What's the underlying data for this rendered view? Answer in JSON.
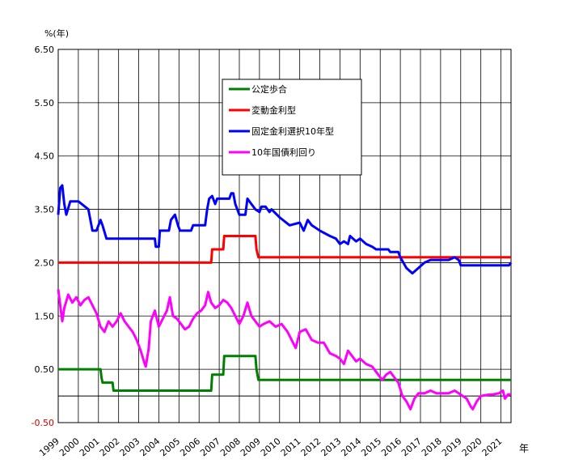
{
  "chart_data": {
    "type": "line",
    "ylabel": "%(年)",
    "xlabel": "年",
    "ylim": [
      -0.5,
      6.5
    ],
    "xlim": [
      1999.0,
      2021.5
    ],
    "grid": true,
    "legend_position": "top-center",
    "y_ticks": [
      "6.50",
      "5.50",
      "4.50",
      "3.50",
      "2.50",
      "1.50",
      "0.50",
      "-0.50"
    ],
    "y_tick_values": [
      6.5,
      5.5,
      4.5,
      3.5,
      2.5,
      1.5,
      0.5,
      -0.5
    ],
    "x_ticks": [
      "1999",
      "2000",
      "2001",
      "2002",
      "2003",
      "2004",
      "2005",
      "2006",
      "2007",
      "2008",
      "2009",
      "2010",
      "2011",
      "2012",
      "2013",
      "2014",
      "2015",
      "2016",
      "2017",
      "2018",
      "2019",
      "2020",
      "2021"
    ],
    "x_tick_values": [
      1999,
      2000,
      2001,
      2002,
      2003,
      2004,
      2005,
      2006,
      2007,
      2008,
      2009,
      2010,
      2011,
      2012,
      2013,
      2014,
      2015,
      2016,
      2017,
      2018,
      2019,
      2020,
      2021
    ],
    "series": [
      {
        "name": "公定歩合",
        "color": "#008000",
        "points": [
          [
            1999.0,
            0.5
          ],
          [
            2001.1,
            0.5
          ],
          [
            2001.15,
            0.35
          ],
          [
            2001.2,
            0.25
          ],
          [
            2001.7,
            0.25
          ],
          [
            2001.75,
            0.1
          ],
          [
            2006.6,
            0.1
          ],
          [
            2006.65,
            0.4
          ],
          [
            2007.2,
            0.4
          ],
          [
            2007.25,
            0.75
          ],
          [
            2008.8,
            0.75
          ],
          [
            2008.85,
            0.5
          ],
          [
            2008.95,
            0.3
          ],
          [
            2021.5,
            0.3
          ]
        ]
      },
      {
        "name": "変動金利型",
        "color": "#ff0000",
        "points": [
          [
            1999.0,
            2.5
          ],
          [
            2006.6,
            2.5
          ],
          [
            2006.65,
            2.75
          ],
          [
            2007.2,
            2.75
          ],
          [
            2007.25,
            3.0
          ],
          [
            2008.8,
            3.0
          ],
          [
            2008.85,
            2.75
          ],
          [
            2008.95,
            2.6
          ],
          [
            2021.5,
            2.6
          ]
        ]
      },
      {
        "name": "固定金利選択10年型",
        "color": "#0000ff",
        "points": [
          [
            1999.0,
            3.4
          ],
          [
            1999.1,
            3.9
          ],
          [
            1999.2,
            3.95
          ],
          [
            1999.3,
            3.6
          ],
          [
            1999.4,
            3.4
          ],
          [
            1999.6,
            3.65
          ],
          [
            2000.0,
            3.65
          ],
          [
            2000.5,
            3.5
          ],
          [
            2000.7,
            3.1
          ],
          [
            2000.9,
            3.1
          ],
          [
            2001.1,
            3.3
          ],
          [
            2001.2,
            3.2
          ],
          [
            2001.4,
            2.95
          ],
          [
            2003.8,
            2.95
          ],
          [
            2003.85,
            2.8
          ],
          [
            2004.0,
            2.8
          ],
          [
            2004.05,
            3.1
          ],
          [
            2004.5,
            3.1
          ],
          [
            2004.6,
            3.3
          ],
          [
            2004.8,
            3.4
          ],
          [
            2004.95,
            3.2
          ],
          [
            2005.05,
            3.1
          ],
          [
            2005.6,
            3.1
          ],
          [
            2005.7,
            3.2
          ],
          [
            2006.3,
            3.2
          ],
          [
            2006.4,
            3.5
          ],
          [
            2006.5,
            3.7
          ],
          [
            2006.65,
            3.75
          ],
          [
            2006.8,
            3.6
          ],
          [
            2006.9,
            3.7
          ],
          [
            2007.5,
            3.7
          ],
          [
            2007.6,
            3.8
          ],
          [
            2007.7,
            3.8
          ],
          [
            2007.8,
            3.6
          ],
          [
            2008.0,
            3.4
          ],
          [
            2008.3,
            3.4
          ],
          [
            2008.4,
            3.7
          ],
          [
            2008.6,
            3.6
          ],
          [
            2008.8,
            3.5
          ],
          [
            2009.0,
            3.45
          ],
          [
            2009.1,
            3.55
          ],
          [
            2009.3,
            3.55
          ],
          [
            2009.5,
            3.45
          ],
          [
            2009.6,
            3.5
          ],
          [
            2010.0,
            3.35
          ],
          [
            2010.5,
            3.2
          ],
          [
            2011.0,
            3.25
          ],
          [
            2011.2,
            3.1
          ],
          [
            2011.4,
            3.3
          ],
          [
            2011.6,
            3.2
          ],
          [
            2012.0,
            3.1
          ],
          [
            2012.5,
            3.0
          ],
          [
            2012.8,
            2.95
          ],
          [
            2013.0,
            2.85
          ],
          [
            2013.2,
            2.9
          ],
          [
            2013.4,
            2.85
          ],
          [
            2013.5,
            3.0
          ],
          [
            2013.8,
            2.9
          ],
          [
            2014.0,
            2.95
          ],
          [
            2014.3,
            2.85
          ],
          [
            2014.6,
            2.8
          ],
          [
            2014.8,
            2.75
          ],
          [
            2015.4,
            2.75
          ],
          [
            2015.5,
            2.7
          ],
          [
            2015.9,
            2.7
          ],
          [
            2016.0,
            2.6
          ],
          [
            2016.3,
            2.4
          ],
          [
            2016.6,
            2.3
          ],
          [
            2016.9,
            2.4
          ],
          [
            2017.2,
            2.5
          ],
          [
            2017.5,
            2.55
          ],
          [
            2018.4,
            2.55
          ],
          [
            2018.7,
            2.6
          ],
          [
            2018.9,
            2.55
          ],
          [
            2019.0,
            2.45
          ],
          [
            2021.4,
            2.45
          ],
          [
            2021.5,
            2.5
          ]
        ]
      },
      {
        "name": "10年国債利回り",
        "color": "#ff00ff",
        "points": [
          [
            1999.0,
            2.0
          ],
          [
            1999.1,
            1.7
          ],
          [
            1999.2,
            1.4
          ],
          [
            1999.3,
            1.65
          ],
          [
            1999.5,
            1.9
          ],
          [
            1999.7,
            1.75
          ],
          [
            1999.9,
            1.85
          ],
          [
            2000.1,
            1.7
          ],
          [
            2000.3,
            1.8
          ],
          [
            2000.5,
            1.85
          ],
          [
            2000.7,
            1.7
          ],
          [
            2000.9,
            1.55
          ],
          [
            2001.1,
            1.3
          ],
          [
            2001.3,
            1.2
          ],
          [
            2001.5,
            1.4
          ],
          [
            2001.7,
            1.3
          ],
          [
            2001.9,
            1.4
          ],
          [
            2002.1,
            1.55
          ],
          [
            2002.3,
            1.4
          ],
          [
            2002.5,
            1.3
          ],
          [
            2002.7,
            1.2
          ],
          [
            2002.9,
            1.05
          ],
          [
            2003.1,
            0.85
          ],
          [
            2003.3,
            0.6
          ],
          [
            2003.35,
            0.55
          ],
          [
            2003.5,
            0.9
          ],
          [
            2003.6,
            1.4
          ],
          [
            2003.8,
            1.6
          ],
          [
            2004.0,
            1.3
          ],
          [
            2004.2,
            1.45
          ],
          [
            2004.4,
            1.6
          ],
          [
            2004.55,
            1.85
          ],
          [
            2004.7,
            1.5
          ],
          [
            2004.9,
            1.45
          ],
          [
            2005.1,
            1.35
          ],
          [
            2005.3,
            1.25
          ],
          [
            2005.5,
            1.3
          ],
          [
            2005.7,
            1.45
          ],
          [
            2005.9,
            1.55
          ],
          [
            2006.1,
            1.6
          ],
          [
            2006.3,
            1.7
          ],
          [
            2006.45,
            1.95
          ],
          [
            2006.6,
            1.75
          ],
          [
            2006.8,
            1.65
          ],
          [
            2007.0,
            1.7
          ],
          [
            2007.2,
            1.8
          ],
          [
            2007.4,
            1.75
          ],
          [
            2007.6,
            1.65
          ],
          [
            2007.8,
            1.5
          ],
          [
            2008.0,
            1.35
          ],
          [
            2008.2,
            1.5
          ],
          [
            2008.4,
            1.75
          ],
          [
            2008.6,
            1.5
          ],
          [
            2008.8,
            1.4
          ],
          [
            2009.0,
            1.3
          ],
          [
            2009.2,
            1.35
          ],
          [
            2009.5,
            1.4
          ],
          [
            2009.8,
            1.3
          ],
          [
            2010.1,
            1.35
          ],
          [
            2010.4,
            1.2
          ],
          [
            2010.6,
            1.05
          ],
          [
            2010.8,
            0.9
          ],
          [
            2011.0,
            1.2
          ],
          [
            2011.3,
            1.25
          ],
          [
            2011.6,
            1.05
          ],
          [
            2011.9,
            1.0
          ],
          [
            2012.2,
            1.0
          ],
          [
            2012.5,
            0.8
          ],
          [
            2012.8,
            0.75
          ],
          [
            2013.0,
            0.7
          ],
          [
            2013.2,
            0.6
          ],
          [
            2013.4,
            0.85
          ],
          [
            2013.6,
            0.75
          ],
          [
            2013.8,
            0.65
          ],
          [
            2014.0,
            0.7
          ],
          [
            2014.3,
            0.6
          ],
          [
            2014.6,
            0.55
          ],
          [
            2014.9,
            0.4
          ],
          [
            2015.1,
            0.3
          ],
          [
            2015.3,
            0.4
          ],
          [
            2015.5,
            0.45
          ],
          [
            2015.7,
            0.35
          ],
          [
            2015.9,
            0.25
          ],
          [
            2016.1,
            0.0
          ],
          [
            2016.3,
            -0.1
          ],
          [
            2016.5,
            -0.25
          ],
          [
            2016.7,
            -0.05
          ],
          [
            2016.9,
            0.05
          ],
          [
            2017.2,
            0.05
          ],
          [
            2017.5,
            0.1
          ],
          [
            2017.8,
            0.05
          ],
          [
            2018.1,
            0.05
          ],
          [
            2018.4,
            0.05
          ],
          [
            2018.7,
            0.1
          ],
          [
            2018.9,
            0.05
          ],
          [
            2019.1,
            0.0
          ],
          [
            2019.3,
            -0.05
          ],
          [
            2019.5,
            -0.2
          ],
          [
            2019.6,
            -0.25
          ],
          [
            2019.8,
            -0.1
          ],
          [
            2020.0,
            0.0
          ],
          [
            2020.3,
            0.02
          ],
          [
            2020.6,
            0.03
          ],
          [
            2020.9,
            0.05
          ],
          [
            2021.1,
            0.1
          ],
          [
            2021.2,
            -0.05
          ],
          [
            2021.35,
            0.03
          ],
          [
            2021.5,
            0.03
          ]
        ]
      }
    ]
  }
}
